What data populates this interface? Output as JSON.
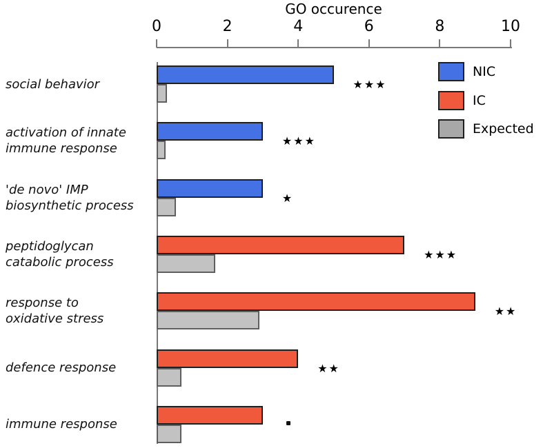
{
  "chart_data": {
    "type": "bar",
    "orientation": "horizontal",
    "title": "GO occurence",
    "xlabel": "GO occurence",
    "xlim": [
      0,
      10
    ],
    "xticks": [
      0,
      2,
      4,
      6,
      8,
      10
    ],
    "grid": false,
    "legend_position": "top-right",
    "rows": [
      {
        "label_lines": [
          "social behavior"
        ],
        "group": "NIC",
        "value": 5,
        "expected": 0.3,
        "significance": "***"
      },
      {
        "label_lines": [
          "activation of innate",
          "immune response"
        ],
        "group": "NIC",
        "value": 3,
        "expected": 0.25,
        "significance": "***"
      },
      {
        "label_lines": [
          "'de novo' IMP",
          "biosynthetic process"
        ],
        "group": "NIC",
        "value": 3,
        "expected": 0.55,
        "significance": "*"
      },
      {
        "label_lines": [
          "peptidoglycan",
          "catabolic process"
        ],
        "group": "IC",
        "value": 7,
        "expected": 1.65,
        "significance": "***"
      },
      {
        "label_lines": [
          "response to",
          "oxidative stress"
        ],
        "group": "IC",
        "value": 9,
        "expected": 2.9,
        "significance": "**"
      },
      {
        "label_lines": [
          "defence response"
        ],
        "group": "IC",
        "value": 4,
        "expected": 0.7,
        "significance": "**"
      },
      {
        "label_lines": [
          "immune response"
        ],
        "group": "IC",
        "value": 3,
        "expected": 0.7,
        "significance": "."
      }
    ],
    "legend": [
      {
        "label": "NIC",
        "color": "#4471E4"
      },
      {
        "label": "IC",
        "color": "#F0593C"
      },
      {
        "label": "Expected",
        "color": "#A8A8A8"
      }
    ],
    "colors": {
      "nic": "#4471E4",
      "ic": "#F0593C",
      "expected_bar": "#C2C2C2",
      "bar_border": "#1f1f1f",
      "axis": "#787878"
    }
  }
}
